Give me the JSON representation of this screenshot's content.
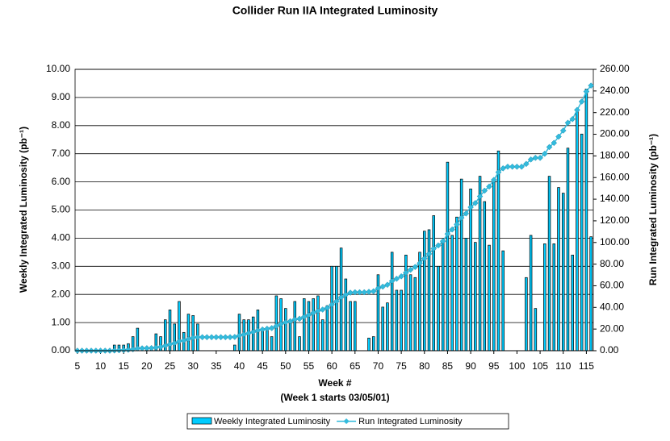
{
  "chart_data": {
    "type": "bar-line",
    "title": "Collider Run IIA Integrated Luminosity",
    "x_label": "Week  #",
    "x_sublabel": "(Week 1 starts 03/05/01)",
    "y_label": "Weekly Integrated Luminosity (pb⁻¹)",
    "y2_label": "Run Integrated Luminosity (pb⁻¹)",
    "x": [
      5,
      6,
      7,
      8,
      9,
      10,
      11,
      12,
      13,
      14,
      15,
      16,
      17,
      18,
      19,
      20,
      21,
      22,
      23,
      24,
      25,
      26,
      27,
      28,
      29,
      30,
      31,
      32,
      33,
      34,
      35,
      36,
      37,
      38,
      39,
      40,
      41,
      42,
      43,
      44,
      45,
      46,
      47,
      48,
      49,
      50,
      51,
      52,
      53,
      54,
      55,
      56,
      57,
      58,
      59,
      60,
      61,
      62,
      63,
      64,
      65,
      66,
      67,
      68,
      69,
      70,
      71,
      72,
      73,
      74,
      75,
      76,
      77,
      78,
      79,
      80,
      81,
      82,
      83,
      84,
      85,
      86,
      87,
      88,
      89,
      90,
      91,
      92,
      93,
      94,
      95,
      96,
      97,
      98,
      99,
      100,
      101,
      102,
      103,
      104,
      105,
      106,
      107,
      108,
      109,
      110,
      111,
      112,
      113,
      114,
      115,
      116
    ],
    "xlim": [
      4.5,
      116.5
    ],
    "xticks": [
      5,
      10,
      15,
      20,
      25,
      30,
      35,
      40,
      45,
      50,
      55,
      60,
      65,
      70,
      75,
      80,
      85,
      90,
      95,
      100,
      105,
      110,
      115
    ],
    "ylim": [
      0,
      10
    ],
    "yticks": [
      {
        "value": 0,
        "label": "0.00"
      },
      {
        "value": 1,
        "label": "1.00"
      },
      {
        "value": 2,
        "label": "2.00"
      },
      {
        "value": 3,
        "label": "3.00"
      },
      {
        "value": 4,
        "label": "4.00"
      },
      {
        "value": 5,
        "label": "5.00"
      },
      {
        "value": 6,
        "label": "6.00"
      },
      {
        "value": 7,
        "label": "7.00"
      },
      {
        "value": 8,
        "label": "8.00"
      },
      {
        "value": 9,
        "label": "9.00"
      },
      {
        "value": 10,
        "label": "10.00"
      }
    ],
    "y2lim": [
      0,
      260
    ],
    "y2ticks": [
      {
        "value": 0,
        "label": "0.00"
      },
      {
        "value": 20,
        "label": "20.00"
      },
      {
        "value": 40,
        "label": "40.00"
      },
      {
        "value": 60,
        "label": "60.00"
      },
      {
        "value": 80,
        "label": "80.00"
      },
      {
        "value": 100,
        "label": "100.00"
      },
      {
        "value": 120,
        "label": "120.00"
      },
      {
        "value": 140,
        "label": "140.00"
      },
      {
        "value": 160,
        "label": "160.00"
      },
      {
        "value": 180,
        "label": "180.00"
      },
      {
        "value": 200,
        "label": "200.00"
      },
      {
        "value": 220,
        "label": "220.00"
      },
      {
        "value": 240,
        "label": "240.00"
      },
      {
        "value": 260,
        "label": "260.00"
      }
    ],
    "grid": true,
    "legend": "bottom",
    "series": [
      {
        "name": "Weekly Integrated Luminosity",
        "type": "bar",
        "color": "#00ccff",
        "values": [
          0.02,
          0.02,
          0.02,
          0.02,
          0.02,
          0.02,
          0.02,
          0.02,
          0.2,
          0.2,
          0.2,
          0.25,
          0.5,
          0.8,
          0,
          0.1,
          0.1,
          0.6,
          0.5,
          1.1,
          1.45,
          0.95,
          1.75,
          0.65,
          1.3,
          1.25,
          0.95,
          0,
          0,
          0,
          0,
          0,
          0,
          0,
          0.2,
          1.3,
          1.1,
          1.1,
          1.2,
          1.45,
          0.75,
          0.8,
          0.5,
          1.95,
          1.85,
          1.5,
          1.0,
          1.75,
          0.5,
          1.85,
          1.75,
          1.85,
          1.95,
          1.1,
          1.6,
          3.0,
          3.0,
          3.65,
          2.55,
          1.75,
          1.75,
          0,
          0,
          0.45,
          0.5,
          2.7,
          1.55,
          1.7,
          3.5,
          2.15,
          2.15,
          3.4,
          2.7,
          2.6,
          3.5,
          4.25,
          4.3,
          4.8,
          3.0,
          3.9,
          6.7,
          4.1,
          4.75,
          6.1,
          4.0,
          5.75,
          3.85,
          6.2,
          5.3,
          3.75,
          6.1,
          7.1,
          3.55,
          0,
          0,
          0,
          0,
          2.6,
          4.1,
          1.5,
          0,
          3.8,
          6.2,
          3.8,
          5.8,
          5.6,
          7.2,
          3.4,
          8.5,
          7.7,
          9.3,
          4.05
        ]
      },
      {
        "name": "Run Integrated Luminosity",
        "type": "line",
        "axis": "y2",
        "color": "#33bbdd",
        "values": [
          0,
          0,
          0,
          0,
          0,
          0,
          0,
          0,
          0.2,
          0.4,
          0.6,
          0.9,
          1.4,
          2.2,
          2.2,
          2.3,
          2.4,
          3,
          3.5,
          4.6,
          6,
          7,
          8.8,
          9.4,
          10.7,
          12,
          12.5,
          12.5,
          12.5,
          12.5,
          12.5,
          12.5,
          12.5,
          12.5,
          12.7,
          14,
          15,
          16.2,
          17.3,
          18.8,
          19.6,
          20.3,
          20.9,
          22.8,
          24.7,
          26.2,
          27.2,
          29,
          29.5,
          31.3,
          33.1,
          35,
          36.9,
          38,
          39.6,
          42.6,
          45.6,
          49.3,
          51.8,
          53.6,
          54,
          54,
          54,
          54.4,
          54.9,
          57.6,
          59.2,
          60.9,
          64.4,
          66.5,
          68.7,
          72.1,
          74.8,
          77.4,
          80.9,
          85.2,
          89.5,
          94.3,
          97.3,
          101.2,
          107.9,
          112,
          116.7,
          122.8,
          126.8,
          132.6,
          136.4,
          142.6,
          147.9,
          151.7,
          157.8,
          164.9,
          168.5,
          170,
          170,
          170,
          170,
          172.6,
          176.7,
          178.2,
          178.2,
          182,
          188.2,
          192,
          197.8,
          203.4,
          210.6,
          214,
          222.5,
          230.2,
          239.5,
          245
        ]
      }
    ]
  }
}
